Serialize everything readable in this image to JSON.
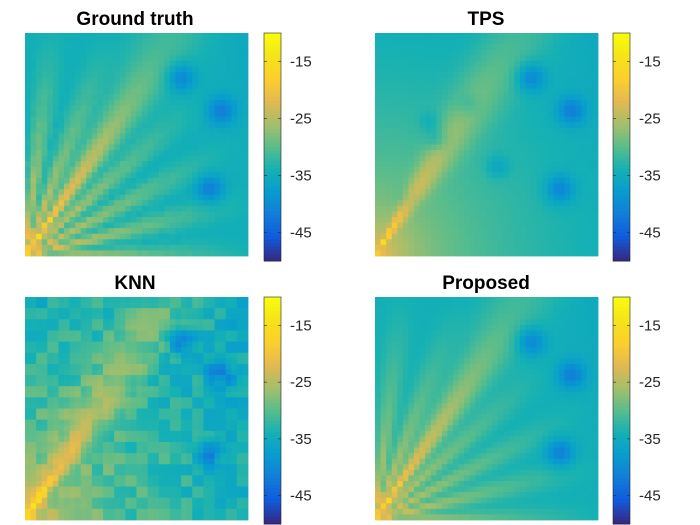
{
  "figure": {
    "chart_data": [
      {
        "type": "heatmap",
        "title": "Ground truth",
        "pattern": "ground_truth",
        "grid_size": [
          40,
          40
        ],
        "colormap": "parula",
        "clim": [
          -50,
          -10
        ],
        "colorbar_ticks": [
          -15,
          -25,
          -35,
          -45
        ],
        "colorbar_tick_labels": [
          "-15",
          "-25",
          "-35",
          "-45"
        ]
      },
      {
        "type": "heatmap",
        "title": "TPS",
        "pattern": "tps",
        "grid_size": [
          40,
          40
        ],
        "colormap": "parula",
        "clim": [
          -50,
          -10
        ],
        "colorbar_ticks": [
          -15,
          -25,
          -35,
          -45
        ],
        "colorbar_tick_labels": [
          "-15",
          "-25",
          "-35",
          "-45"
        ]
      },
      {
        "type": "heatmap",
        "title": "KNN",
        "pattern": "knn",
        "grid_size": [
          40,
          40
        ],
        "colormap": "parula",
        "clim": [
          -50,
          -10
        ],
        "colorbar_ticks": [
          -15,
          -25,
          -35,
          -45
        ],
        "colorbar_tick_labels": [
          "-15",
          "-25",
          "-35",
          "-45"
        ]
      },
      {
        "type": "heatmap",
        "title": "Proposed",
        "pattern": "proposed",
        "grid_size": [
          40,
          40
        ],
        "colormap": "parula",
        "clim": [
          -50,
          -10
        ],
        "colorbar_ticks": [
          -15,
          -25,
          -35,
          -45
        ],
        "colorbar_tick_labels": [
          "-15",
          "-25",
          "-35",
          "-45"
        ]
      }
    ]
  }
}
